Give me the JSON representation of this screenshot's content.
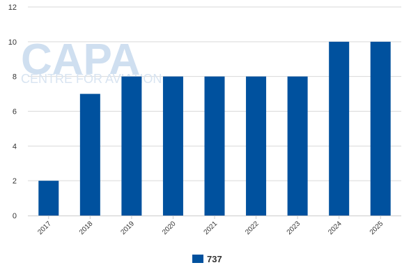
{
  "watermark": {
    "logo_text": "CAPA",
    "tagline": "CENTRE FOR AVIATION"
  },
  "colors": {
    "bar": "#00519e",
    "grid": "#d9d9d9",
    "axis": "#cccccc"
  },
  "chart_data": {
    "type": "bar",
    "categories": [
      "2017",
      "2018",
      "2019",
      "2020",
      "2021",
      "2022",
      "2023",
      "2024",
      "2025"
    ],
    "series": [
      {
        "name": "737",
        "values": [
          2,
          7,
          8,
          8,
          8,
          8,
          8,
          10,
          10
        ]
      }
    ],
    "ylim": [
      0,
      12
    ],
    "yticks": [
      0,
      2,
      4,
      6,
      8,
      10,
      12
    ],
    "grid": true,
    "legend_position": "bottom-center"
  }
}
